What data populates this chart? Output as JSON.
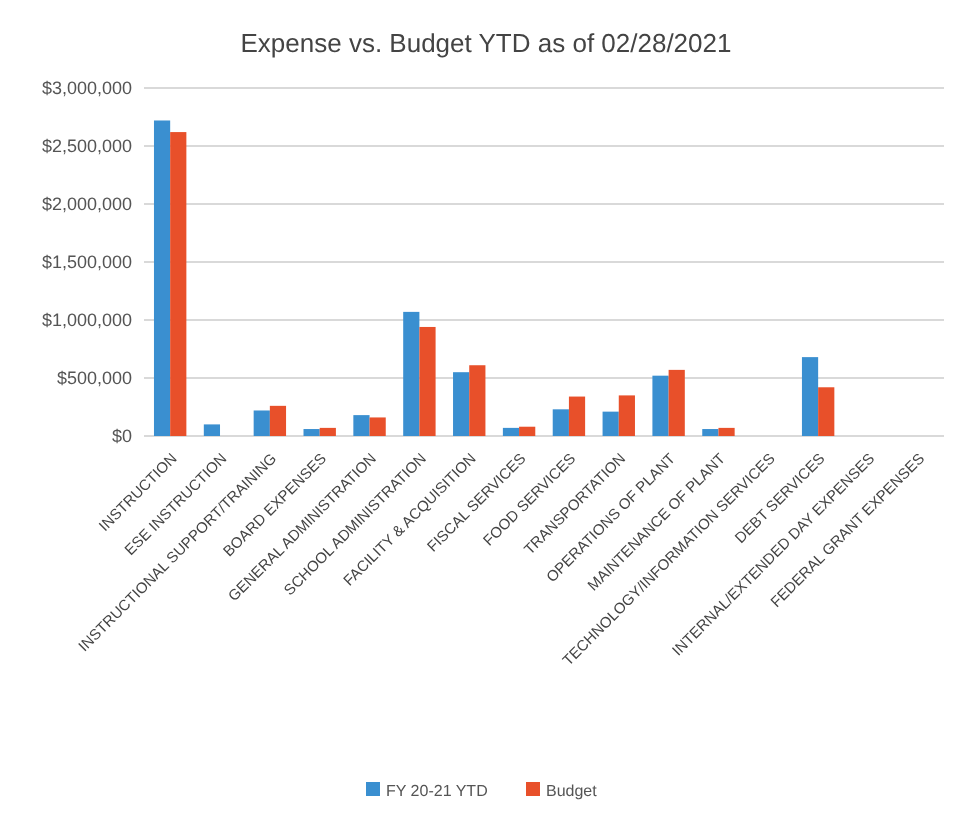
{
  "chart_data": {
    "type": "bar",
    "title": "Expense vs. Budget YTD as of 02/28/2021",
    "categories": [
      "INSTRUCTION",
      "ESE INSTRUCTION",
      "INSTRUCTIONAL SUPPORT/TRAINING",
      "BOARD EXPENSES",
      "GENERAL ADMINISTRATION",
      "SCHOOL ADMINISTRATION",
      "FACILITY & ACQUISITION",
      "FISCAL SERVICES",
      "FOOD SERVICES",
      "TRANSPORTATION",
      "OPERATIONS OF PLANT",
      "MAINTENANCE OF PLANT",
      "TECHNOLOGY/INFORMATION SERVICES",
      "DEBT SERVICES",
      "INTERNAL/EXTENDED DAY EXPENSES",
      "FEDERAL GRANT EXPENSES"
    ],
    "series": [
      {
        "name": "FY 20-21 YTD",
        "color": "#3a8fd0",
        "values": [
          2720000,
          100000,
          220000,
          60000,
          180000,
          1070000,
          550000,
          70000,
          230000,
          210000,
          520000,
          60000,
          0,
          680000,
          0,
          0
        ]
      },
      {
        "name": "Budget",
        "color": "#e8502a",
        "values": [
          2620000,
          0,
          260000,
          70000,
          160000,
          940000,
          610000,
          80000,
          340000,
          350000,
          570000,
          70000,
          0,
          420000,
          0,
          0
        ]
      }
    ],
    "ylim": [
      0,
      3000000
    ],
    "yticks": [
      {
        "value": 0,
        "label": "$0"
      },
      {
        "value": 500000,
        "label": "$500,000"
      },
      {
        "value": 1000000,
        "label": "$1,000,000"
      },
      {
        "value": 1500000,
        "label": "$1,500,000"
      },
      {
        "value": 2000000,
        "label": "$2,000,000"
      },
      {
        "value": 2500000,
        "label": "$2,500,000"
      },
      {
        "value": 3000000,
        "label": "$3,000,000"
      }
    ],
    "grid": "y",
    "legend": "bottom"
  }
}
